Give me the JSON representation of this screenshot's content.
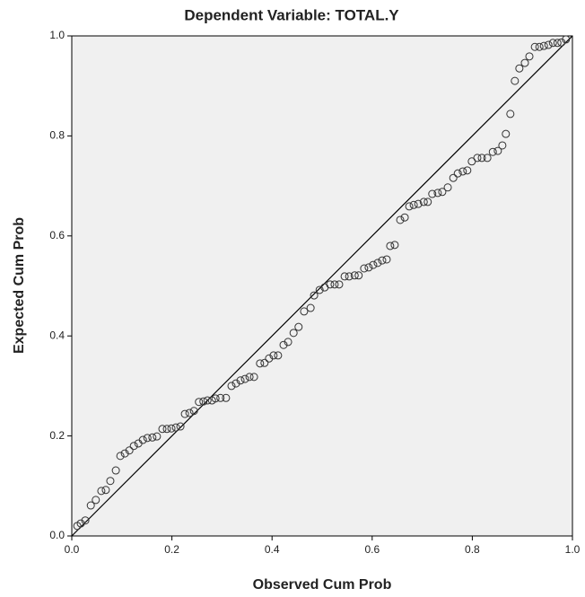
{
  "chart_data": {
    "type": "scatter",
    "title": "Dependent Variable: TOTAL.Y",
    "x_label": "Observed Cum Prob",
    "y_label": "Expected Cum Prob",
    "xlim": [
      0,
      1
    ],
    "ylim": [
      0,
      1
    ],
    "xticks": [
      {
        "value": 0,
        "label": "0.0"
      },
      {
        "value": 0.2,
        "label": "0.2"
      },
      {
        "value": 0.4,
        "label": "0.4"
      },
      {
        "value": 0.6,
        "label": "0.6"
      },
      {
        "value": 0.8,
        "label": "0.8"
      },
      {
        "value": 1,
        "label": "1.0"
      }
    ],
    "yticks": [
      {
        "value": 0,
        "label": "0.0"
      },
      {
        "value": 0.2,
        "label": "0.2"
      },
      {
        "value": 0.4,
        "label": "0.4"
      },
      {
        "value": 0.6,
        "label": "0.6"
      },
      {
        "value": 0.8,
        "label": "0.8"
      },
      {
        "value": 1,
        "label": "1.0"
      }
    ],
    "reference_line": true,
    "color": "#333333",
    "background": "#f0f0f0",
    "x": [
      0.011,
      0.018,
      0.027,
      0.038,
      0.048,
      0.059,
      0.068,
      0.077,
      0.088,
      0.097,
      0.106,
      0.115,
      0.124,
      0.133,
      0.142,
      0.151,
      0.161,
      0.17,
      0.181,
      0.19,
      0.199,
      0.208,
      0.217,
      0.226,
      0.235,
      0.244,
      0.254,
      0.263,
      0.271,
      0.28,
      0.287,
      0.297,
      0.308,
      0.319,
      0.328,
      0.337,
      0.346,
      0.355,
      0.364,
      0.376,
      0.385,
      0.394,
      0.403,
      0.412,
      0.423,
      0.432,
      0.443,
      0.453,
      0.464,
      0.477,
      0.484,
      0.495,
      0.505,
      0.516,
      0.525,
      0.534,
      0.545,
      0.554,
      0.565,
      0.573,
      0.584,
      0.593,
      0.602,
      0.611,
      0.62,
      0.629,
      0.636,
      0.645,
      0.656,
      0.665,
      0.674,
      0.683,
      0.692,
      0.703,
      0.711,
      0.72,
      0.731,
      0.74,
      0.751,
      0.762,
      0.771,
      0.781,
      0.79,
      0.799,
      0.81,
      0.819,
      0.83,
      0.841,
      0.851,
      0.86,
      0.867,
      0.876,
      0.885,
      0.894,
      0.905,
      0.914,
      0.925,
      0.934,
      0.943,
      0.952,
      0.961,
      0.97,
      0.978,
      0.987
    ],
    "values": [
      0.02,
      0.025,
      0.031,
      0.061,
      0.072,
      0.09,
      0.092,
      0.11,
      0.131,
      0.16,
      0.165,
      0.171,
      0.18,
      0.185,
      0.192,
      0.196,
      0.197,
      0.199,
      0.214,
      0.214,
      0.215,
      0.217,
      0.219,
      0.244,
      0.246,
      0.25,
      0.268,
      0.269,
      0.271,
      0.271,
      0.275,
      0.276,
      0.276,
      0.3,
      0.305,
      0.311,
      0.314,
      0.318,
      0.318,
      0.345,
      0.346,
      0.355,
      0.361,
      0.361,
      0.382,
      0.388,
      0.406,
      0.418,
      0.449,
      0.456,
      0.481,
      0.492,
      0.497,
      0.503,
      0.503,
      0.503,
      0.519,
      0.519,
      0.521,
      0.521,
      0.535,
      0.537,
      0.542,
      0.546,
      0.551,
      0.553,
      0.58,
      0.582,
      0.632,
      0.637,
      0.659,
      0.662,
      0.664,
      0.668,
      0.668,
      0.684,
      0.686,
      0.688,
      0.697,
      0.716,
      0.725,
      0.729,
      0.731,
      0.749,
      0.756,
      0.756,
      0.756,
      0.768,
      0.77,
      0.781,
      0.804,
      0.844,
      0.91,
      0.935,
      0.946,
      0.959,
      0.978,
      0.978,
      0.98,
      0.982,
      0.986,
      0.986,
      0.987,
      0.993
    ]
  }
}
